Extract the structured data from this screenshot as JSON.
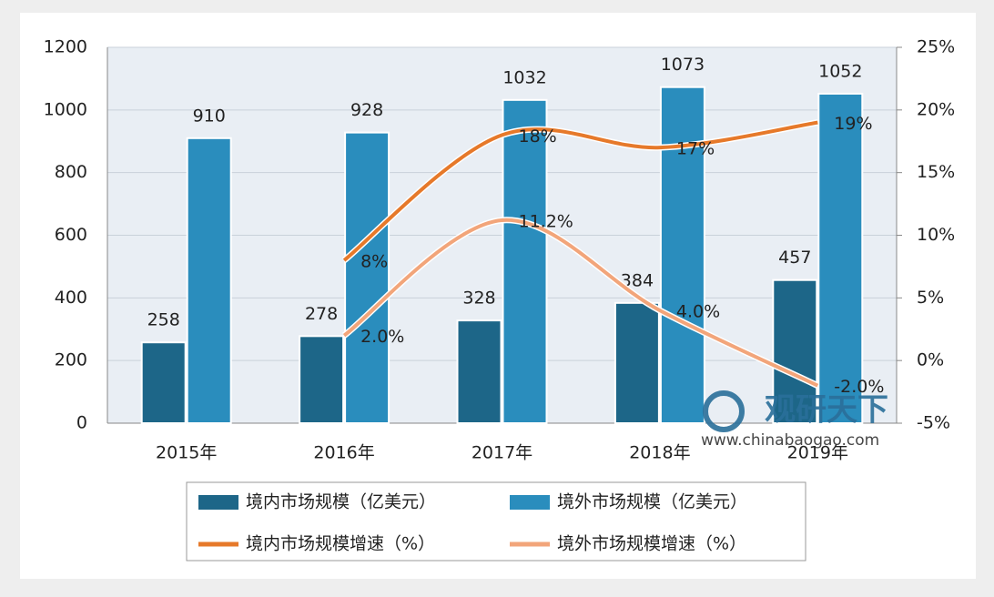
{
  "chart_data": {
    "type": "bar",
    "categories": [
      "2015年",
      "2016年",
      "2017年",
      "2018年",
      "2019年"
    ],
    "series": [
      {
        "name": "境内市场规模（亿美元）",
        "type": "bar",
        "color": "#1d6688",
        "values": [
          258,
          278,
          328,
          384,
          457
        ]
      },
      {
        "name": "境外市场规模（亿美元）",
        "type": "bar",
        "color": "#2a8dbd",
        "values": [
          910,
          928,
          1032,
          1073,
          1052
        ]
      },
      {
        "name": "境内市场规模增速（%）",
        "type": "line",
        "axis": "y2",
        "color": "#e6792a",
        "values": [
          null,
          8,
          18,
          17,
          19
        ],
        "value_labels": [
          null,
          "8%",
          "18%",
          "17%",
          "19%"
        ]
      },
      {
        "name": "境外市场规模增速（%）",
        "type": "line",
        "axis": "y2",
        "color": "#f2a57a",
        "values": [
          null,
          2.0,
          11.2,
          4.0,
          -2.0
        ],
        "value_labels": [
          null,
          "2.0%",
          "11.2%",
          "4.0%",
          "-2.0%"
        ]
      }
    ],
    "ylim": [
      0,
      1200
    ],
    "yticks": [
      0,
      200,
      400,
      600,
      800,
      1000,
      1200
    ],
    "y2lim": [
      -5,
      25
    ],
    "y2ticks": [
      {
        "value": -5,
        "label": "-5%"
      },
      {
        "value": 0,
        "label": "0%"
      },
      {
        "value": 5,
        "label": "5%"
      },
      {
        "value": 10,
        "label": "10%"
      },
      {
        "value": 15,
        "label": "15%"
      },
      {
        "value": 20,
        "label": "20%"
      },
      {
        "value": 25,
        "label": "25%"
      }
    ],
    "grid": true,
    "legend": "bottom",
    "watermark": {
      "brand": "观研天下",
      "url": "www.chinabaogao.com"
    }
  }
}
